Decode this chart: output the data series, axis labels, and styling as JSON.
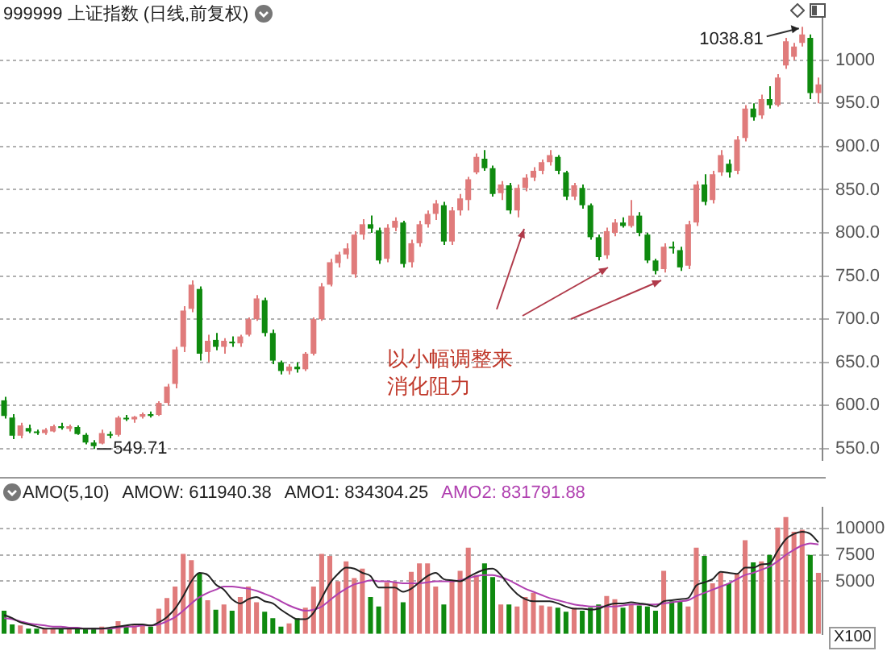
{
  "chart_data": [
    {
      "type": "candlestick",
      "title": "999999 上证指数 (日线,前复权)",
      "categories": [
        null,
        null,
        null,
        null,
        null,
        null,
        null,
        null,
        null,
        null,
        null,
        null,
        null,
        null,
        null,
        null,
        null,
        null,
        null,
        null,
        null,
        null,
        null,
        null,
        null,
        null,
        null,
        null,
        null,
        null,
        null,
        null,
        null,
        null,
        null,
        null,
        null,
        null,
        null,
        null,
        null,
        null,
        null,
        null,
        null,
        null,
        null,
        null,
        null,
        null,
        null,
        null,
        null,
        null,
        null,
        null,
        null,
        null,
        null,
        null,
        null,
        null,
        null,
        null,
        null,
        null,
        null,
        null,
        null,
        null,
        null,
        null,
        null,
        null,
        null,
        null,
        null,
        null,
        null,
        null,
        null,
        null,
        null,
        null,
        null,
        null,
        null,
        null,
        null,
        null,
        null,
        null,
        null,
        null,
        null,
        null,
        null,
        null,
        null,
        null,
        null
      ],
      "ohlc": [
        [
          606,
          610,
          585,
          588
        ],
        [
          586,
          590,
          561,
          565
        ],
        [
          565,
          580,
          562,
          577
        ],
        [
          574,
          578,
          568,
          570
        ],
        [
          569,
          572,
          566,
          568
        ],
        [
          568,
          574,
          566,
          572
        ],
        [
          570,
          578,
          569,
          576
        ],
        [
          576,
          580,
          572,
          574
        ],
        [
          573,
          578,
          570,
          576
        ],
        [
          575,
          577,
          566,
          567
        ],
        [
          566,
          568,
          555,
          557
        ],
        [
          557,
          560,
          549.71,
          553
        ],
        [
          556,
          572,
          555,
          568
        ],
        [
          567,
          570,
          562,
          565
        ],
        [
          566,
          588,
          564,
          586
        ],
        [
          585,
          589,
          582,
          584
        ],
        [
          584,
          588,
          580,
          587
        ],
        [
          587,
          592,
          585,
          590
        ],
        [
          590,
          593,
          586,
          588
        ],
        [
          589,
          605,
          588,
          603
        ],
        [
          603,
          625,
          600,
          622
        ],
        [
          625,
          668,
          620,
          665
        ],
        [
          668,
          715,
          662,
          710
        ],
        [
          712,
          745,
          708,
          740
        ],
        [
          735,
          738,
          652,
          660
        ],
        [
          662,
          682,
          650,
          675
        ],
        [
          676,
          684,
          664,
          668
        ],
        [
          668,
          678,
          660,
          675
        ],
        [
          674,
          680,
          668,
          672
        ],
        [
          672,
          682,
          668,
          680
        ],
        [
          682,
          702,
          680,
          700
        ],
        [
          700,
          728,
          698,
          724
        ],
        [
          722,
          725,
          680,
          684
        ],
        [
          684,
          688,
          648,
          652
        ],
        [
          650,
          652,
          636,
          640
        ],
        [
          640,
          648,
          636,
          645
        ],
        [
          645,
          650,
          638,
          642
        ],
        [
          642,
          662,
          640,
          660
        ],
        [
          660,
          702,
          658,
          700
        ],
        [
          700,
          742,
          698,
          738
        ],
        [
          740,
          770,
          738,
          766
        ],
        [
          765,
          778,
          760,
          775
        ],
        [
          775,
          788,
          770,
          782
        ],
        [
          752,
          802,
          748,
          798
        ],
        [
          798,
          816,
          792,
          810
        ],
        [
          810,
          820,
          800,
          805
        ],
        [
          803,
          806,
          764,
          768
        ],
        [
          770,
          810,
          766,
          806
        ],
        [
          806,
          818,
          802,
          814
        ],
        [
          812,
          814,
          760,
          764
        ],
        [
          766,
          792,
          760,
          788
        ],
        [
          788,
          814,
          784,
          810
        ],
        [
          810,
          826,
          806,
          822
        ],
        [
          822,
          838,
          815,
          834
        ],
        [
          832,
          836,
          786,
          790
        ],
        [
          790,
          830,
          786,
          826
        ],
        [
          826,
          845,
          820,
          840
        ],
        [
          838,
          865,
          826,
          862
        ],
        [
          870,
          892,
          868,
          888
        ],
        [
          886,
          896,
          872,
          875
        ],
        [
          875,
          878,
          842,
          845
        ],
        [
          846,
          860,
          838,
          856
        ],
        [
          855,
          858,
          822,
          826
        ],
        [
          826,
          856,
          818,
          852
        ],
        [
          852,
          868,
          848,
          864
        ],
        [
          864,
          876,
          860,
          872
        ],
        [
          872,
          885,
          868,
          882
        ],
        [
          882,
          896,
          878,
          890
        ],
        [
          888,
          890,
          868,
          872
        ],
        [
          870,
          872,
          838,
          842
        ],
        [
          842,
          858,
          838,
          855
        ],
        [
          852,
          856,
          828,
          832
        ],
        [
          832,
          834,
          792,
          795
        ],
        [
          795,
          798,
          768,
          772
        ],
        [
          774,
          806,
          770,
          802
        ],
        [
          800,
          816,
          796,
          812
        ],
        [
          812,
          818,
          806,
          808
        ],
        [
          808,
          838,
          806,
          820
        ],
        [
          820,
          824,
          796,
          800
        ],
        [
          798,
          800,
          765,
          768
        ],
        [
          768,
          770,
          752,
          756
        ],
        [
          758,
          788,
          754,
          784
        ],
        [
          784,
          790,
          776,
          782
        ],
        [
          780,
          784,
          756,
          760
        ],
        [
          762,
          814,
          758,
          810
        ],
        [
          812,
          860,
          808,
          856
        ],
        [
          856,
          868,
          832,
          836
        ],
        [
          838,
          872,
          834,
          868
        ],
        [
          870,
          896,
          866,
          890
        ],
        [
          880,
          885,
          864,
          870
        ],
        [
          872,
          912,
          868,
          908
        ],
        [
          910,
          948,
          906,
          944
        ],
        [
          944,
          950,
          930,
          934
        ],
        [
          936,
          960,
          932,
          955
        ],
        [
          955,
          970,
          944,
          948
        ],
        [
          948,
          984,
          946,
          980
        ],
        [
          994,
          1026,
          990,
          1022
        ],
        [
          1004,
          1020,
          1000,
          1016
        ],
        [
          1020,
          1038.81,
          1016,
          1030
        ],
        [
          1026,
          1030,
          955,
          962
        ],
        [
          962,
          980,
          950,
          972
        ]
      ],
      "colors": [
        "#0f8a0f",
        "#0f8a0f",
        "#e07b7b",
        "#0f8a0f",
        "#0f8a0f",
        "#e07b7b",
        "#e07b7b",
        "#0f8a0f",
        "#e07b7b",
        "#0f8a0f",
        "#0f8a0f",
        "#0f8a0f",
        "#e07b7b",
        "#0f8a0f",
        "#e07b7b",
        "#0f8a0f",
        "#e07b7b",
        "#e07b7b",
        "#0f8a0f",
        "#e07b7b",
        "#e07b7b",
        "#e07b7b",
        "#e07b7b",
        "#e07b7b",
        "#0f8a0f",
        "#e07b7b",
        "#0f8a0f",
        "#e07b7b",
        "#0f8a0f",
        "#e07b7b",
        "#e07b7b",
        "#e07b7b",
        "#0f8a0f",
        "#0f8a0f",
        "#0f8a0f",
        "#e07b7b",
        "#0f8a0f",
        "#e07b7b",
        "#e07b7b",
        "#e07b7b",
        "#e07b7b",
        "#e07b7b",
        "#e07b7b",
        "#e07b7b",
        "#e07b7b",
        "#0f8a0f",
        "#0f8a0f",
        "#e07b7b",
        "#e07b7b",
        "#0f8a0f",
        "#e07b7b",
        "#e07b7b",
        "#e07b7b",
        "#e07b7b",
        "#0f8a0f",
        "#e07b7b",
        "#e07b7b",
        "#e07b7b",
        "#e07b7b",
        "#0f8a0f",
        "#0f8a0f",
        "#e07b7b",
        "#0f8a0f",
        "#e07b7b",
        "#e07b7b",
        "#e07b7b",
        "#e07b7b",
        "#e07b7b",
        "#0f8a0f",
        "#0f8a0f",
        "#e07b7b",
        "#0f8a0f",
        "#0f8a0f",
        "#0f8a0f",
        "#e07b7b",
        "#e07b7b",
        "#0f8a0f",
        "#e07b7b",
        "#0f8a0f",
        "#0f8a0f",
        "#0f8a0f",
        "#e07b7b",
        "#0f8a0f",
        "#0f8a0f",
        "#e07b7b",
        "#e07b7b",
        "#0f8a0f",
        "#e07b7b",
        "#e07b7b",
        "#0f8a0f",
        "#e07b7b",
        "#e07b7b",
        "#0f8a0f",
        "#e07b7b",
        "#0f8a0f",
        "#e07b7b",
        "#e07b7b",
        "#e07b7b",
        "#e07b7b",
        "#0f8a0f",
        "#e07b7b"
      ],
      "ylim": [
        537,
        1050
      ],
      "yticks": [
        {
          "value": 550,
          "label": "550.0"
        },
        {
          "value": 600,
          "label": "600.0"
        },
        {
          "value": 650,
          "label": "650.0"
        },
        {
          "value": 700,
          "label": "700.0"
        },
        {
          "value": 750,
          "label": "750.0"
        },
        {
          "value": 800,
          "label": "800.0"
        },
        {
          "value": 850,
          "label": "850.0"
        },
        {
          "value": 900,
          "label": "900.0"
        },
        {
          "value": 950,
          "label": "950.0"
        },
        1000
      ],
      "grid": "y",
      "tick_labels": "y",
      "annotations": [
        "1038.81",
        "549.71",
        "以小幅调整来消化阻力"
      ]
    },
    {
      "type": "bar",
      "title": "AMO(5,10)",
      "annotations": [
        "AMOW: 611940.38",
        "X100"
      ],
      "categories": [
        null,
        null,
        null,
        null,
        null,
        null,
        null,
        null,
        null,
        null,
        null,
        null,
        null,
        null,
        null,
        null,
        null,
        null,
        null,
        null,
        null,
        null,
        null,
        null,
        null,
        null,
        null,
        null,
        null,
        null,
        null,
        null,
        null,
        null,
        null,
        null,
        null,
        null,
        null,
        null,
        null,
        null,
        null,
        null,
        null,
        null,
        null,
        null,
        null,
        null,
        null,
        null,
        null,
        null,
        null,
        null,
        null,
        null,
        null,
        null,
        null,
        null,
        null,
        null,
        null,
        null,
        null,
        null,
        null,
        null,
        null,
        null,
        null,
        null,
        null,
        null,
        null,
        null,
        null,
        null,
        null,
        null,
        null,
        null,
        null,
        null,
        null,
        null,
        null,
        null,
        null,
        null,
        null,
        null,
        null,
        null,
        null,
        null,
        null,
        null,
        null
      ],
      "series": [
        {
          "type": "bar",
          "values": [
            2200,
            900,
            800,
            500,
            500,
            500,
            500,
            500,
            500,
            500,
            500,
            600,
            700,
            500,
            1200,
            800,
            800,
            800,
            700,
            2400,
            3400,
            4500,
            7600,
            7000,
            5800,
            3200,
            2300,
            2800,
            2200,
            3500,
            4500,
            3000,
            2100,
            1500,
            700,
            1000,
            1500,
            2500,
            4500,
            7600,
            7400,
            5000,
            6900,
            5300,
            6200,
            3500,
            2600,
            4900,
            4900,
            3000,
            5900,
            6700,
            6700,
            4500,
            2800,
            5100,
            6000,
            8200,
            5600,
            6700,
            5400,
            2800,
            2800,
            2600,
            3500,
            3900,
            2700,
            2600,
            2500,
            2100,
            2500,
            2200,
            2500,
            2800,
            3600,
            3300,
            2500,
            2800,
            2700,
            2600,
            2200,
            6000,
            3100,
            3100,
            2600,
            8200,
            7400,
            4800,
            5800,
            4800,
            5700,
            8900,
            6800,
            6900,
            7500,
            10100,
            11100,
            9700,
            9900,
            7500,
            5800
          ],
          "colors": [
            "#0f8a0f",
            "#0f8a0f",
            "#e07b7b",
            "#0f8a0f",
            "#0f8a0f",
            "#e07b7b",
            "#e07b7b",
            "#0f8a0f",
            "#e07b7b",
            "#0f8a0f",
            "#0f8a0f",
            "#0f8a0f",
            "#e07b7b",
            "#0f8a0f",
            "#e07b7b",
            "#0f8a0f",
            "#e07b7b",
            "#e07b7b",
            "#0f8a0f",
            "#e07b7b",
            "#e07b7b",
            "#e07b7b",
            "#e07b7b",
            "#e07b7b",
            "#0f8a0f",
            "#e07b7b",
            "#0f8a0f",
            "#e07b7b",
            "#0f8a0f",
            "#e07b7b",
            "#e07b7b",
            "#e07b7b",
            "#0f8a0f",
            "#0f8a0f",
            "#0f8a0f",
            "#e07b7b",
            "#0f8a0f",
            "#e07b7b",
            "#e07b7b",
            "#e07b7b",
            "#e07b7b",
            "#e07b7b",
            "#e07b7b",
            "#e07b7b",
            "#e07b7b",
            "#0f8a0f",
            "#0f8a0f",
            "#e07b7b",
            "#e07b7b",
            "#0f8a0f",
            "#e07b7b",
            "#e07b7b",
            "#e07b7b",
            "#e07b7b",
            "#0f8a0f",
            "#e07b7b",
            "#e07b7b",
            "#e07b7b",
            "#e07b7b",
            "#0f8a0f",
            "#0f8a0f",
            "#e07b7b",
            "#0f8a0f",
            "#e07b7b",
            "#e07b7b",
            "#e07b7b",
            "#e07b7b",
            "#e07b7b",
            "#0f8a0f",
            "#0f8a0f",
            "#e07b7b",
            "#0f8a0f",
            "#0f8a0f",
            "#0f8a0f",
            "#e07b7b",
            "#e07b7b",
            "#0f8a0f",
            "#e07b7b",
            "#0f8a0f",
            "#0f8a0f",
            "#0f8a0f",
            "#e07b7b",
            "#0f8a0f",
            "#0f8a0f",
            "#e07b7b",
            "#e07b7b",
            "#0f8a0f",
            "#e07b7b",
            "#e07b7b",
            "#0f8a0f",
            "#e07b7b",
            "#e07b7b",
            "#0f8a0f",
            "#e07b7b",
            "#0f8a0f",
            "#e07b7b",
            "#e07b7b",
            "#e07b7b",
            "#e07b7b",
            "#0f8a0f",
            "#e07b7b"
          ]
        },
        {
          "type": "line",
          "name": "AMO1: 834304.25",
          "color": "#222222",
          "values": [
            1800,
            1500,
            1100,
            900,
            700,
            500,
            500,
            500,
            500,
            500,
            500,
            500,
            500,
            600,
            700,
            800,
            900,
            900,
            800,
            1100,
            1600,
            2400,
            3600,
            5000,
            5800,
            5600,
            4700,
            4200,
            3300,
            2900,
            3300,
            3500,
            3100,
            2900,
            2300,
            1800,
            1400,
            1400,
            2000,
            3400,
            4800,
            5700,
            6300,
            6200,
            5800,
            5500,
            4400,
            4400,
            4400,
            4000,
            4300,
            4900,
            5500,
            5800,
            5200,
            5100,
            5000,
            5400,
            5800,
            6100,
            6200,
            5600,
            4600,
            3800,
            3300,
            3100,
            3100,
            3100,
            2900,
            2600,
            2400,
            2400,
            2300,
            2400,
            2700,
            2900,
            2900,
            3000,
            2900,
            2800,
            2600,
            3100,
            3200,
            3300,
            3400,
            4600,
            4900,
            5200,
            5900,
            5800,
            5700,
            6300,
            6300,
            6600,
            6700,
            7900,
            9000,
            9500,
            9700,
            9500,
            8700
          ]
        },
        {
          "type": "line",
          "name": "AMO2: 831791.88",
          "color": "#b040b0",
          "values": [
            1500,
            1400,
            1200,
            1000,
            900,
            800,
            700,
            700,
            600,
            600,
            500,
            500,
            500,
            500,
            600,
            700,
            700,
            800,
            800,
            900,
            1200,
            1600,
            2200,
            2900,
            3500,
            3900,
            4200,
            4500,
            4500,
            4400,
            4300,
            4100,
            3800,
            3500,
            3100,
            2700,
            2400,
            2200,
            2300,
            2600,
            3200,
            3800,
            4300,
            4700,
            4900,
            5100,
            5000,
            5000,
            4900,
            4800,
            4800,
            4800,
            4900,
            5000,
            5000,
            5000,
            5100,
            5300,
            5500,
            5600,
            5600,
            5400,
            5100,
            4700,
            4300,
            4000,
            3700,
            3400,
            3200,
            3000,
            2800,
            2700,
            2600,
            2600,
            2600,
            2600,
            2700,
            2800,
            2800,
            2800,
            2800,
            2900,
            3000,
            3100,
            3200,
            3600,
            3900,
            4200,
            4500,
            4800,
            5200,
            5600,
            5800,
            6100,
            6400,
            6900,
            7500,
            8000,
            8400,
            8600,
            8500
          ]
        }
      ],
      "ylim": [
        0,
        12000
      ],
      "yticks": [
        5000,
        7500,
        10000
      ],
      "grid": "y",
      "tick_labels": "y",
      "legend": "top left",
      "marker": "none"
    }
  ]
}
